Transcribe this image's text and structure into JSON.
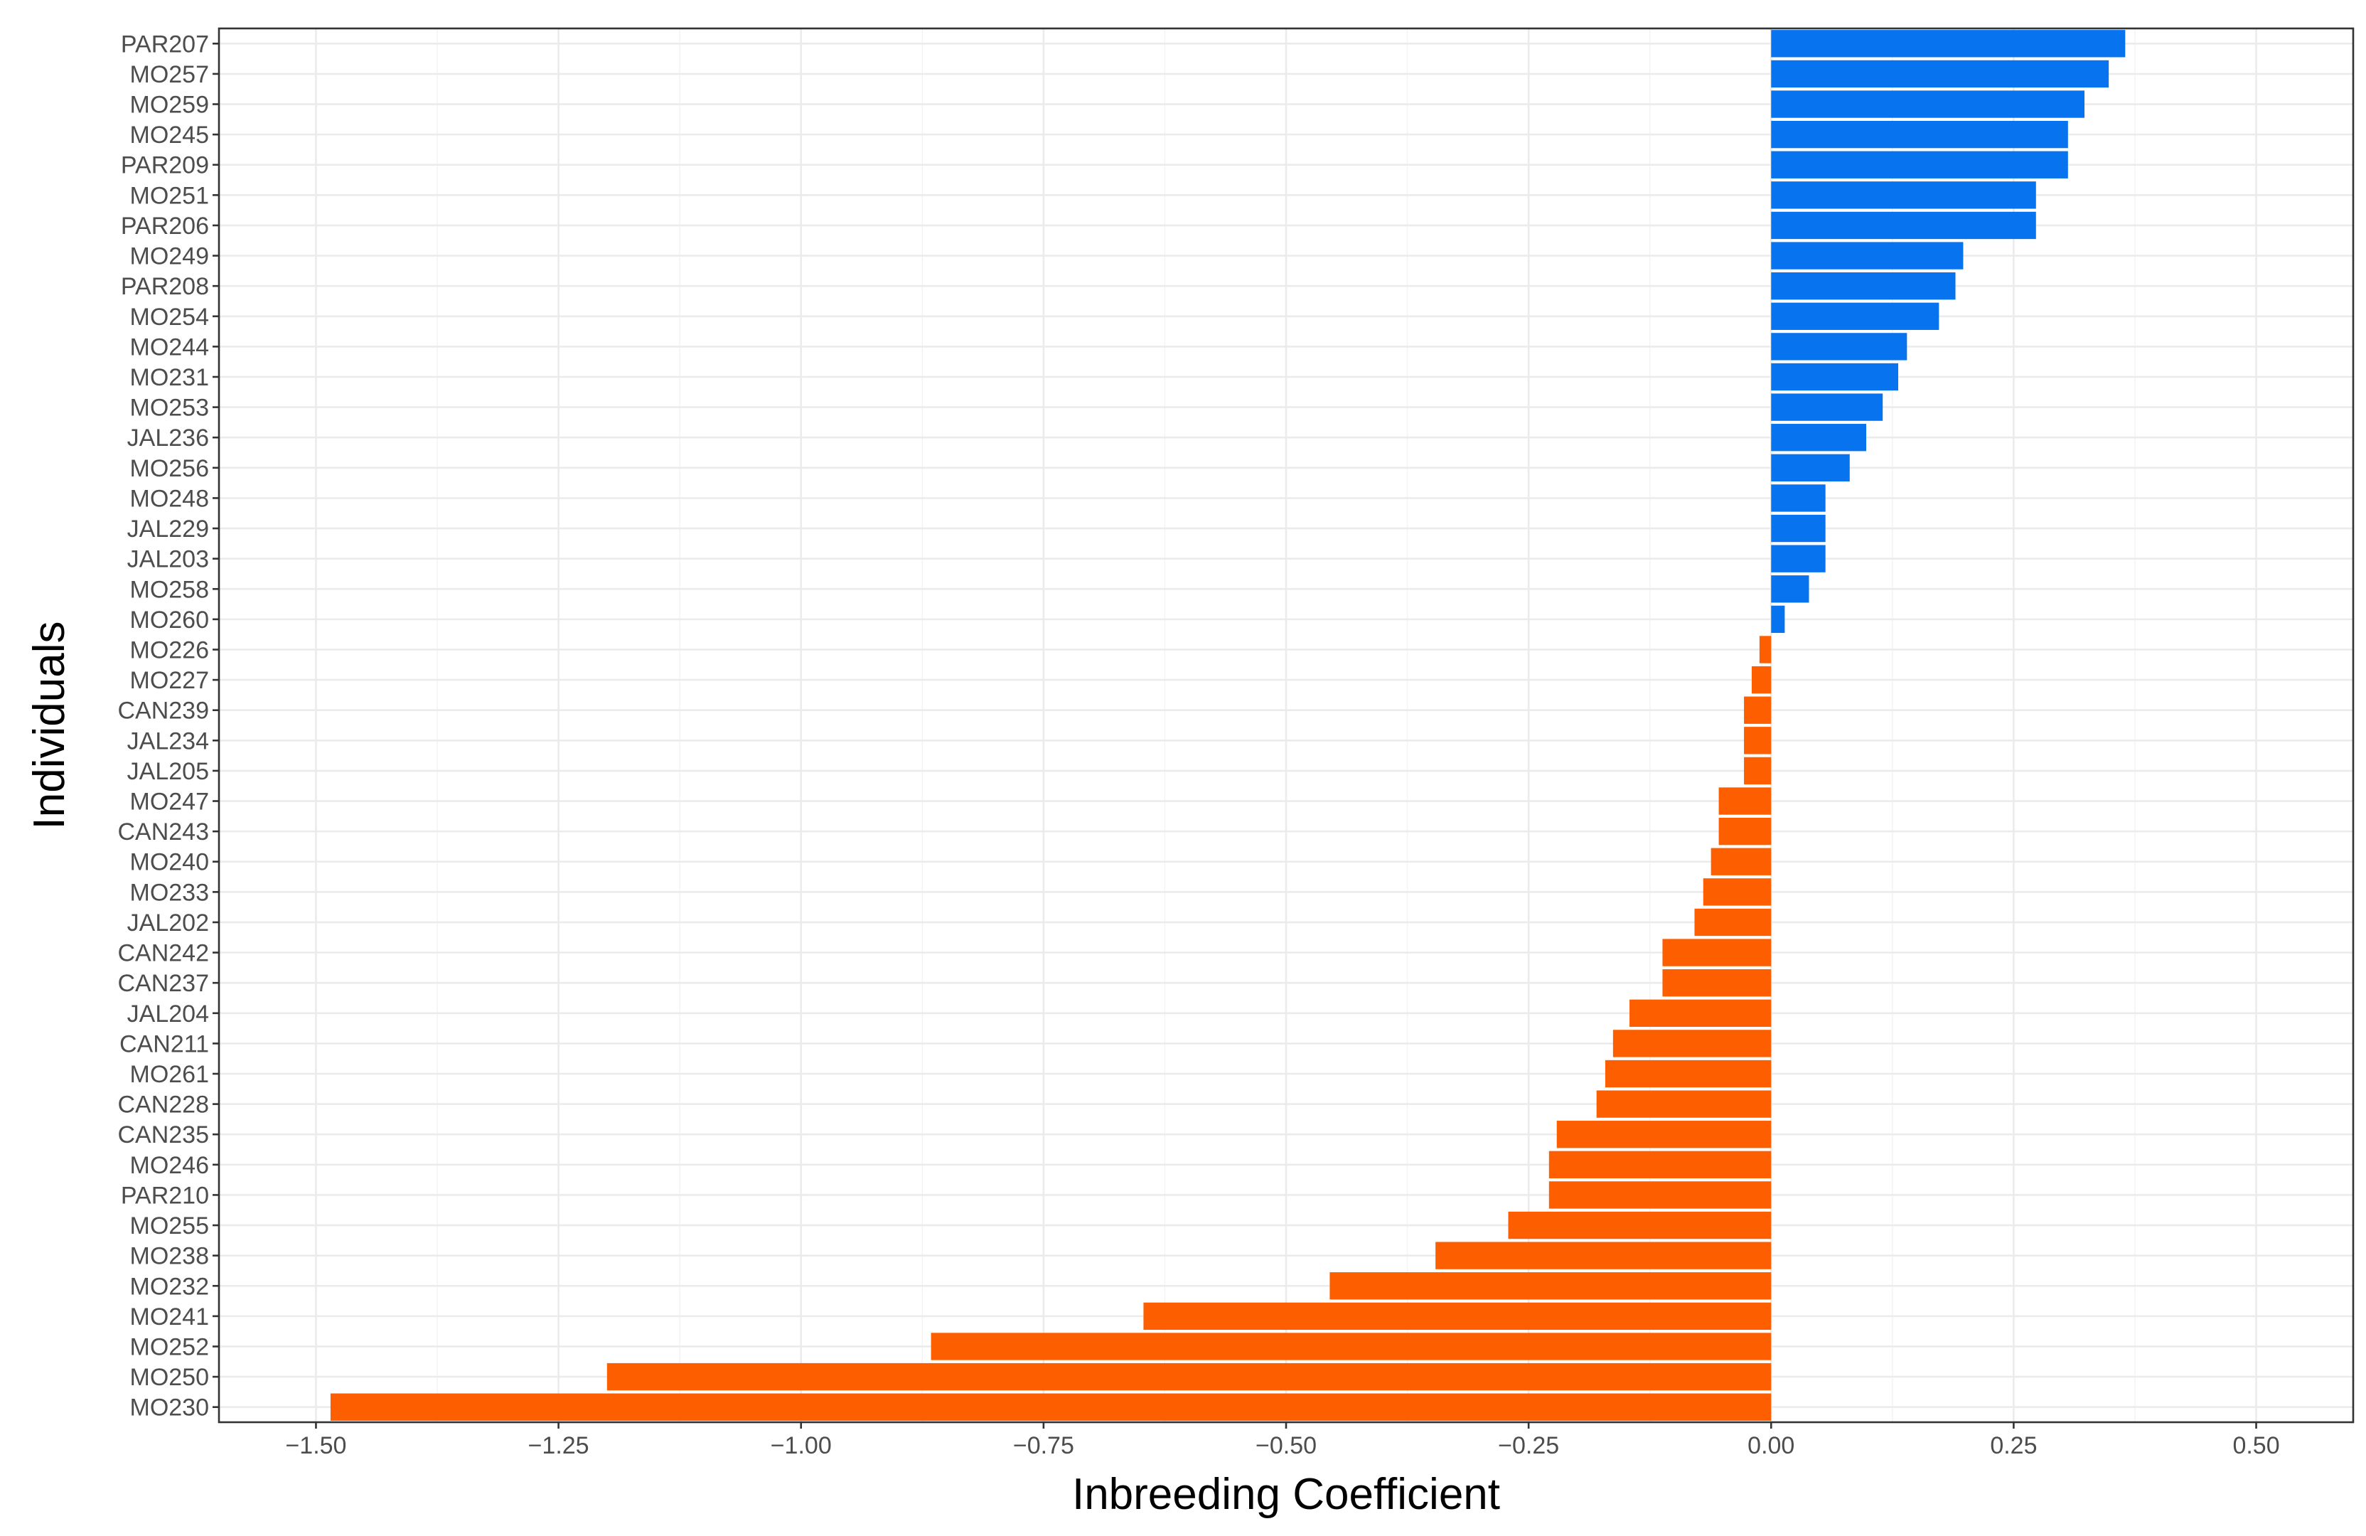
{
  "chart_data": {
    "type": "bar",
    "orientation": "horizontal",
    "xlabel": "Inbreeding Coefficient",
    "ylabel": "Individuals",
    "xlim": [
      -1.6,
      0.6
    ],
    "xticks": [
      -1.5,
      -1.25,
      -1.0,
      -0.75,
      -0.5,
      -0.25,
      0.0,
      0.25,
      0.5
    ],
    "xtick_labels": [
      "−1.50",
      "−1.25",
      "−1.00",
      "−0.75",
      "−0.50",
      "−0.25",
      "0.00",
      "0.25",
      "0.50"
    ],
    "grid": true,
    "colors": {
      "positive": "#0773ef",
      "negative": "#fd5e00"
    },
    "categories": [
      "PAR207",
      "MO257",
      "MO259",
      "MO245",
      "PAR209",
      "MO251",
      "PAR206",
      "MO249",
      "PAR208",
      "MO254",
      "MO244",
      "MO231",
      "MO253",
      "JAL236",
      "MO256",
      "MO248",
      "JAL229",
      "JAL203",
      "MO258",
      "MO260",
      "MO226",
      "MO227",
      "CAN239",
      "JAL234",
      "JAL205",
      "MO247",
      "CAN243",
      "MO240",
      "MO233",
      "JAL202",
      "CAN242",
      "CAN237",
      "JAL204",
      "CAN211",
      "MO261",
      "CAN228",
      "CAN235",
      "MO246",
      "PAR210",
      "MO255",
      "MO238",
      "MO232",
      "MO241",
      "MO252",
      "MO250",
      "MO230"
    ],
    "values": [
      0.365,
      0.348,
      0.323,
      0.306,
      0.306,
      0.273,
      0.273,
      0.198,
      0.19,
      0.173,
      0.14,
      0.131,
      0.115,
      0.098,
      0.081,
      0.056,
      0.056,
      0.056,
      0.039,
      0.014,
      -0.012,
      -0.02,
      -0.028,
      -0.028,
      -0.028,
      -0.054,
      -0.054,
      -0.062,
      -0.07,
      -0.079,
      -0.112,
      -0.112,
      -0.146,
      -0.163,
      -0.171,
      -0.18,
      -0.221,
      -0.229,
      -0.229,
      -0.271,
      -0.346,
      -0.455,
      -0.647,
      -0.866,
      -1.2,
      -1.485
    ]
  }
}
